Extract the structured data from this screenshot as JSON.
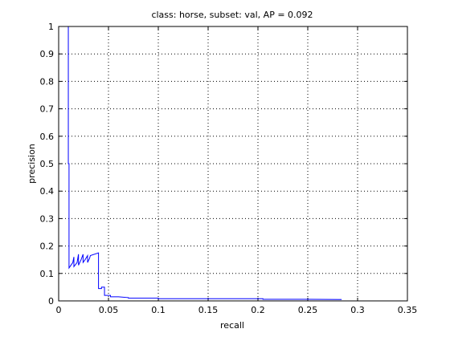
{
  "chart_data": {
    "type": "line",
    "title": "class: horse, subset: val, AP = 0.092",
    "xlabel": "recall",
    "ylabel": "precision",
    "xlim": [
      0,
      0.35
    ],
    "ylim": [
      0,
      1
    ],
    "xticks": [
      0,
      0.05,
      0.1,
      0.15,
      0.2,
      0.25,
      0.3,
      0.35
    ],
    "xtick_labels": [
      "0",
      "0.05",
      "0.1",
      "0.15",
      "0.2",
      "0.25",
      "0.3",
      "0.35"
    ],
    "yticks": [
      0,
      0.1,
      0.2,
      0.3,
      0.4,
      0.5,
      0.6,
      0.7,
      0.8,
      0.9,
      1
    ],
    "ytick_labels": [
      "0",
      "0.1",
      "0.2",
      "0.3",
      "0.4",
      "0.5",
      "0.6",
      "0.7",
      "0.8",
      "0.9",
      "1"
    ],
    "grid": true,
    "series": [
      {
        "color": "#0000ff",
        "x": [
          0.0097,
          0.0097,
          0.0104,
          0.0104,
          0.0142,
          0.0153,
          0.0153,
          0.0185,
          0.0199,
          0.0199,
          0.0225,
          0.0245,
          0.0245,
          0.0265,
          0.029,
          0.029,
          0.031,
          0.0318,
          0.04,
          0.04,
          0.043,
          0.043,
          0.046,
          0.046,
          0.049,
          0.049,
          0.052,
          0.052,
          0.06,
          0.07,
          0.07,
          0.1,
          0.1,
          0.15,
          0.2,
          0.205,
          0.205,
          0.25,
          0.284
        ],
        "y": [
          1.0,
          0.5,
          0.5,
          0.12,
          0.14,
          0.16,
          0.125,
          0.14,
          0.17,
          0.13,
          0.15,
          0.17,
          0.14,
          0.15,
          0.165,
          0.14,
          0.155,
          0.165,
          0.175,
          0.045,
          0.045,
          0.05,
          0.05,
          0.02,
          0.02,
          0.02,
          0.02,
          0.015,
          0.015,
          0.012,
          0.01,
          0.01,
          0.008,
          0.008,
          0.008,
          0.008,
          0.006,
          0.006,
          0.005
        ]
      }
    ]
  }
}
